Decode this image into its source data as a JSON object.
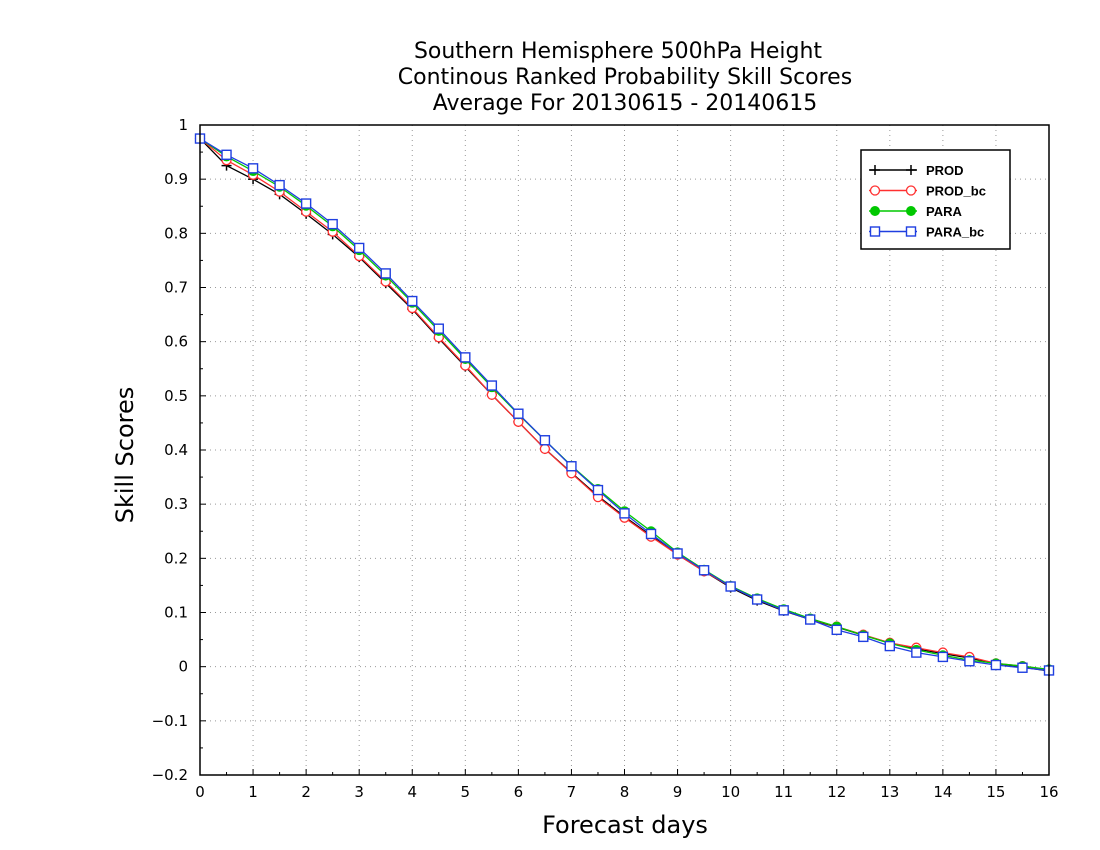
{
  "chart_data": {
    "type": "line",
    "title": [
      "Southern Hemisphere 500hPa Height",
      "Continous Ranked Probability Skill Scores",
      "Average For 20130615 - 20140615"
    ],
    "xlabel": "Forecast days",
    "ylabel": "Skill Scores",
    "xlim": [
      0,
      16
    ],
    "ylim": [
      -0.2,
      1
    ],
    "x_ticks": [
      0,
      1,
      2,
      3,
      4,
      5,
      6,
      7,
      8,
      9,
      10,
      11,
      12,
      13,
      14,
      15,
      16
    ],
    "x_tick_labels": [
      "0",
      "1",
      "2",
      "3",
      "4",
      "5",
      "6",
      "7",
      "8",
      "9",
      "10",
      "11",
      "12",
      "13",
      "14",
      "15",
      "16"
    ],
    "y_ticks": [
      -0.2,
      -0.1,
      0,
      0.1,
      0.2,
      0.3,
      0.4,
      0.5,
      0.6,
      0.7,
      0.8,
      0.9,
      1
    ],
    "y_tick_labels": [
      "−0.2",
      "−0.1",
      "0",
      "0.1",
      "0.2",
      "0.3",
      "0.4",
      "0.5",
      "0.6",
      "0.7",
      "0.8",
      "0.9",
      "1"
    ],
    "grid": true,
    "legend_position": "top-right",
    "x": [
      0,
      0.5,
      1,
      1.5,
      2,
      2.5,
      3,
      3.5,
      4,
      4.5,
      5,
      5.5,
      6,
      6.5,
      7,
      7.5,
      8,
      8.5,
      9,
      9.5,
      10,
      10.5,
      11,
      11.5,
      12,
      12.5,
      13,
      13.5,
      14,
      14.5,
      15,
      15.5,
      16
    ],
    "series": [
      {
        "name": "PROD",
        "color": "#000000",
        "marker": "plus",
        "values": [
          0.975,
          0.925,
          0.9,
          0.872,
          0.836,
          0.798,
          0.756,
          0.708,
          0.66,
          0.606,
          0.554,
          0.502,
          0.452,
          0.402,
          0.358,
          0.315,
          0.277,
          0.242,
          0.207,
          0.176,
          0.146,
          0.122,
          0.103,
          0.087,
          0.073,
          0.058,
          0.044,
          0.033,
          0.024,
          0.016,
          0.006,
          -0.001,
          -0.008
        ]
      },
      {
        "name": "PROD_bc",
        "color": "#ff3030",
        "marker": "circle",
        "values": [
          0.975,
          0.935,
          0.908,
          0.877,
          0.84,
          0.803,
          0.758,
          0.711,
          0.662,
          0.608,
          0.556,
          0.502,
          0.452,
          0.402,
          0.357,
          0.313,
          0.275,
          0.24,
          0.207,
          0.176,
          0.148,
          0.124,
          0.104,
          0.088,
          0.074,
          0.059,
          0.044,
          0.035,
          0.026,
          0.018,
          0.006,
          0.001,
          -0.006
        ]
      },
      {
        "name": "PARA",
        "color": "#00c800",
        "marker": "filled-circle",
        "values": [
          0.975,
          0.942,
          0.915,
          0.886,
          0.851,
          0.813,
          0.769,
          0.722,
          0.672,
          0.62,
          0.568,
          0.516,
          0.466,
          0.418,
          0.371,
          0.328,
          0.287,
          0.25,
          0.211,
          0.179,
          0.149,
          0.126,
          0.106,
          0.089,
          0.074,
          0.058,
          0.043,
          0.031,
          0.021,
          0.012,
          0.006,
          0.001,
          -0.005
        ]
      },
      {
        "name": "PARA_bc",
        "color": "#1f3fe0",
        "marker": "square",
        "values": [
          0.975,
          0.945,
          0.92,
          0.889,
          0.855,
          0.817,
          0.773,
          0.726,
          0.675,
          0.624,
          0.571,
          0.519,
          0.467,
          0.418,
          0.37,
          0.326,
          0.283,
          0.245,
          0.209,
          0.178,
          0.148,
          0.124,
          0.104,
          0.087,
          0.068,
          0.055,
          0.038,
          0.026,
          0.018,
          0.01,
          0.003,
          -0.002,
          -0.007
        ]
      }
    ]
  }
}
